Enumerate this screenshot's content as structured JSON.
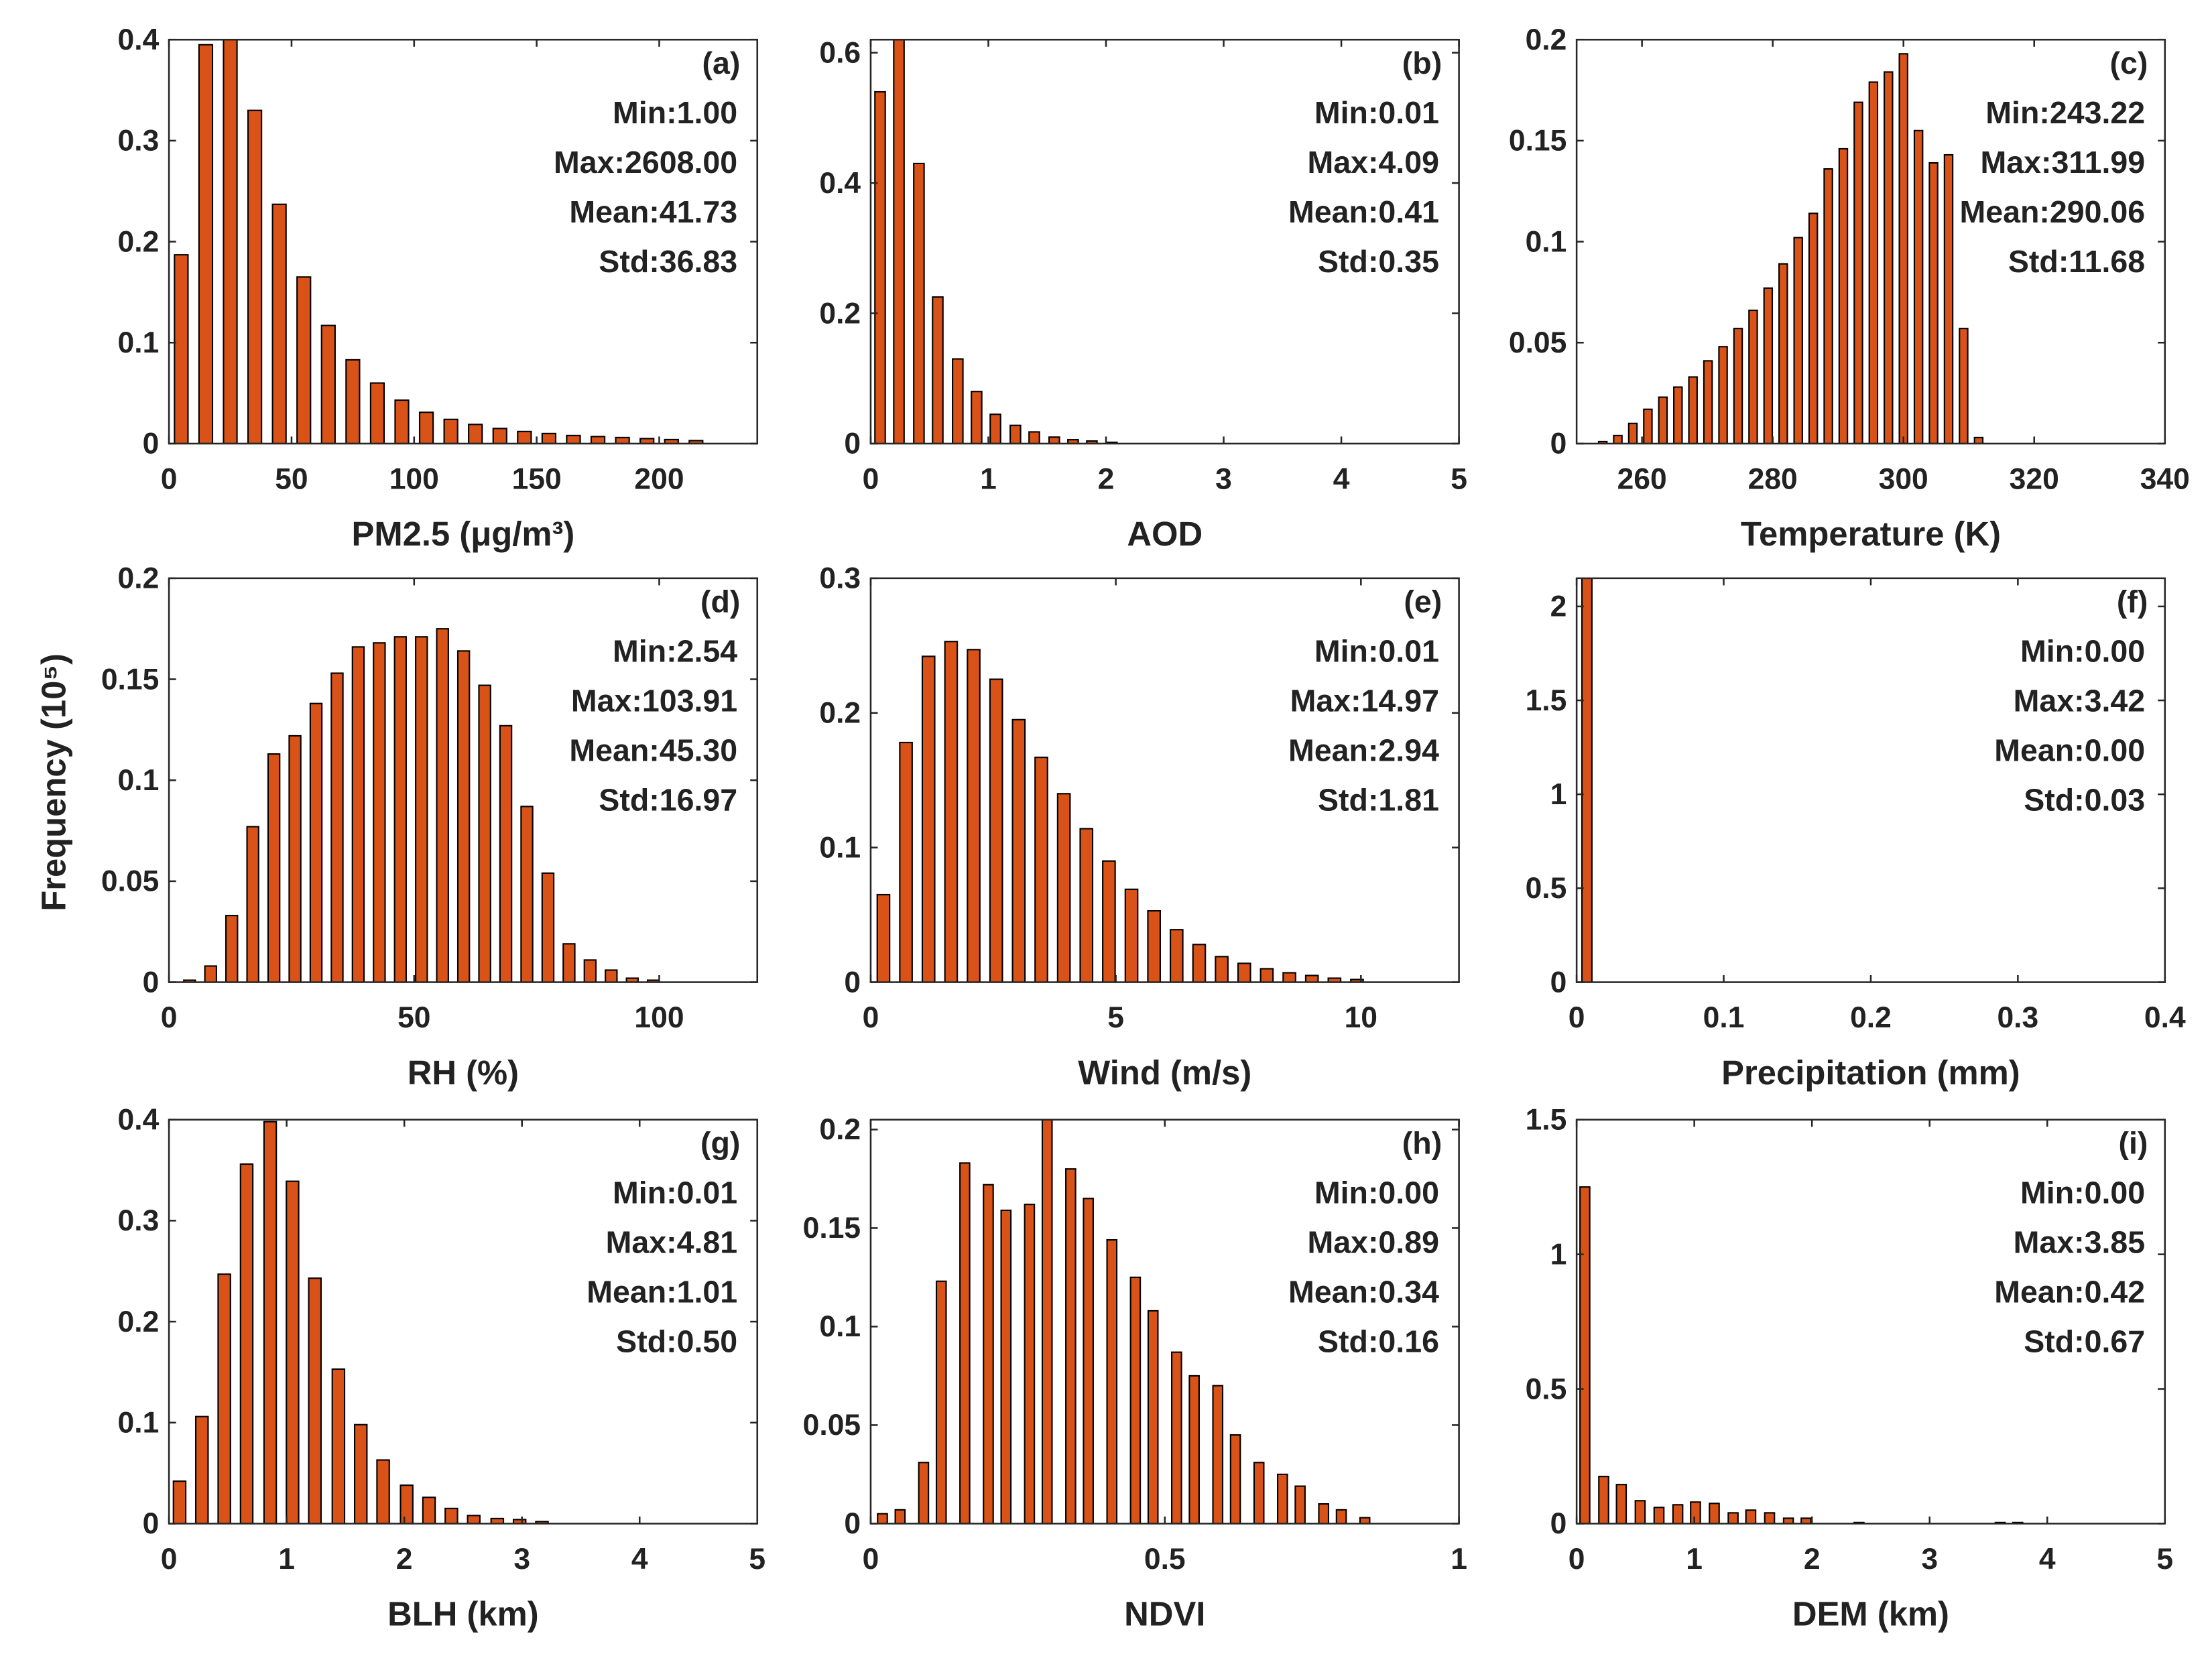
{
  "ylabel": "Frequency (10⁵)",
  "chart_data": [
    {
      "type": "bar",
      "panel_label": "(a)",
      "stats": [
        "Min:1.00",
        "Max:2608.00",
        "Mean:41.73",
        "Std:36.83"
      ],
      "xlabel": "PM2.5 (μg/m³)",
      "color": "#d95319",
      "x": [
        5,
        15,
        25,
        35,
        45,
        55,
        65,
        75,
        85,
        95,
        105,
        115,
        125,
        135,
        145,
        155,
        165,
        175,
        185,
        195,
        205,
        215
      ],
      "values": [
        0.187,
        0.395,
        0.41,
        0.33,
        0.237,
        0.165,
        0.117,
        0.083,
        0.06,
        0.043,
        0.031,
        0.024,
        0.019,
        0.015,
        0.012,
        0.01,
        0.008,
        0.007,
        0.006,
        0.005,
        0.004,
        0.003
      ],
      "xlim": [
        0,
        240
      ],
      "xticks": [
        0,
        50,
        100,
        150,
        200
      ],
      "ylim": [
        0,
        0.4
      ],
      "yticks": [
        0,
        0.1,
        0.2,
        0.3,
        0.4
      ]
    },
    {
      "type": "bar",
      "panel_label": "(b)",
      "stats": [
        "Min:0.01",
        "Max:4.09",
        "Mean:0.41",
        "Std:0.35"
      ],
      "xlabel": "AOD",
      "color": "#d95319",
      "x": [
        0.08,
        0.24,
        0.41,
        0.57,
        0.74,
        0.9,
        1.06,
        1.23,
        1.39,
        1.56,
        1.72,
        1.88,
        2.05
      ],
      "values": [
        0.54,
        0.63,
        0.43,
        0.225,
        0.13,
        0.08,
        0.045,
        0.028,
        0.018,
        0.01,
        0.006,
        0.004,
        0.002
      ],
      "xlim": [
        0,
        5
      ],
      "xticks": [
        0,
        1,
        2,
        3,
        4,
        5
      ],
      "ylim": [
        0,
        0.62
      ],
      "yticks": [
        0,
        0.2,
        0.4,
        0.6
      ]
    },
    {
      "type": "bar",
      "panel_label": "(c)",
      "stats": [
        "Min:243.22",
        "Max:311.99",
        "Mean:290.06",
        "Std:11.68"
      ],
      "xlabel": "Temperature (K)",
      "color": "#d95319",
      "x": [
        254,
        256.3,
        258.6,
        260.9,
        263.2,
        265.5,
        267.8,
        270.1,
        272.4,
        274.7,
        277,
        279.3,
        281.6,
        283.9,
        286.2,
        288.5,
        290.8,
        293.1,
        295.4,
        297.7,
        300,
        302.3,
        304.6,
        306.9,
        309.2,
        311.5
      ],
      "values": [
        0.001,
        0.004,
        0.01,
        0.017,
        0.023,
        0.028,
        0.033,
        0.041,
        0.048,
        0.057,
        0.066,
        0.077,
        0.089,
        0.102,
        0.114,
        0.136,
        0.146,
        0.169,
        0.179,
        0.184,
        0.193,
        0.155,
        0.139,
        0.143,
        0.057,
        0.003
      ],
      "xlim": [
        250,
        340
      ],
      "xticks": [
        260,
        280,
        300,
        320,
        340
      ],
      "ylim": [
        0,
        0.2
      ],
      "yticks": [
        0,
        0.05,
        0.1,
        0.15,
        0.2
      ]
    },
    {
      "type": "bar",
      "panel_label": "(d)",
      "stats": [
        "Min:2.54",
        "Max:103.91",
        "Mean:45.30",
        "Std:16.97"
      ],
      "xlabel": "RH (%)",
      "color": "#d95319",
      "x": [
        4.2,
        8.5,
        12.8,
        17.1,
        21.4,
        25.7,
        30,
        34.3,
        38.6,
        42.9,
        47.2,
        51.5,
        55.8,
        60.1,
        64.4,
        68.7,
        73,
        77.3,
        81.6,
        85.9,
        90.2,
        94.5,
        98.8
      ],
      "values": [
        0.001,
        0.008,
        0.033,
        0.077,
        0.113,
        0.122,
        0.138,
        0.153,
        0.166,
        0.168,
        0.171,
        0.171,
        0.175,
        0.164,
        0.147,
        0.127,
        0.087,
        0.054,
        0.019,
        0.011,
        0.006,
        0.002,
        0.001
      ],
      "xlim": [
        0,
        120
      ],
      "xticks": [
        0,
        50,
        100
      ],
      "ylim": [
        0,
        0.2
      ],
      "yticks": [
        0,
        0.05,
        0.1,
        0.15,
        0.2
      ]
    },
    {
      "type": "bar",
      "panel_label": "(e)",
      "stats": [
        "Min:0.01",
        "Max:14.97",
        "Mean:2.94",
        "Std:1.81"
      ],
      "xlabel": "Wind (m/s)",
      "color": "#d95319",
      "x": [
        0.26,
        0.72,
        1.18,
        1.64,
        2.1,
        2.56,
        3.02,
        3.48,
        3.94,
        4.4,
        4.86,
        5.32,
        5.78,
        6.24,
        6.7,
        7.16,
        7.62,
        8.08,
        8.54,
        9,
        9.46,
        9.92
      ],
      "values": [
        0.065,
        0.178,
        0.242,
        0.253,
        0.247,
        0.225,
        0.195,
        0.167,
        0.14,
        0.114,
        0.09,
        0.069,
        0.053,
        0.039,
        0.028,
        0.019,
        0.014,
        0.01,
        0.007,
        0.005,
        0.003,
        0.002
      ],
      "xlim": [
        0,
        12
      ],
      "xticks": [
        0,
        5,
        10
      ],
      "ylim": [
        0,
        0.3
      ],
      "yticks": [
        0,
        0.1,
        0.2,
        0.3
      ]
    },
    {
      "type": "bar",
      "panel_label": "(f)",
      "stats": [
        "Min:0.00",
        "Max:3.42",
        "Mean:0.00",
        "Std:0.03"
      ],
      "xlabel": "Precipitation (mm)",
      "color": "#d95319",
      "x": [
        0.007
      ],
      "values": [
        2.3
      ],
      "xlim": [
        0,
        0.4
      ],
      "xticks": [
        0,
        0.1,
        0.2,
        0.3,
        0.4
      ],
      "ylim": [
        0,
        2.15
      ],
      "yticks": [
        0,
        0.5,
        1,
        1.5,
        2
      ]
    },
    {
      "type": "bar",
      "panel_label": "(g)",
      "stats": [
        "Min:0.01",
        "Max:4.81",
        "Mean:1.01",
        "Std:0.50"
      ],
      "xlabel": "BLH (km)",
      "color": "#d95319",
      "x": [
        0.09,
        0.28,
        0.47,
        0.66,
        0.86,
        1.05,
        1.24,
        1.44,
        1.63,
        1.82,
        2.02,
        2.21,
        2.4,
        2.59,
        2.79,
        2.98,
        3.17
      ],
      "values": [
        0.042,
        0.106,
        0.247,
        0.356,
        0.398,
        0.339,
        0.243,
        0.153,
        0.098,
        0.063,
        0.038,
        0.026,
        0.015,
        0.008,
        0.005,
        0.004,
        0.002
      ],
      "xlim": [
        0,
        5
      ],
      "xticks": [
        0,
        1,
        2,
        3,
        4,
        5
      ],
      "ylim": [
        0,
        0.4
      ],
      "yticks": [
        0,
        0.1,
        0.2,
        0.3,
        0.4
      ]
    },
    {
      "type": "bar",
      "panel_label": "(h)",
      "stats": [
        "Min:0.00",
        "Max:0.89",
        "Mean:0.34",
        "Std:0.16"
      ],
      "xlabel": "NDVI",
      "color": "#d95319",
      "x": [
        0.02,
        0.05,
        0.09,
        0.12,
        0.16,
        0.2,
        0.23,
        0.27,
        0.3,
        0.34,
        0.37,
        0.41,
        0.45,
        0.48,
        0.52,
        0.55,
        0.59,
        0.62,
        0.66,
        0.7,
        0.73,
        0.77,
        0.8,
        0.84
      ],
      "values": [
        0.005,
        0.007,
        0.031,
        0.123,
        0.183,
        0.172,
        0.159,
        0.162,
        0.21,
        0.18,
        0.165,
        0.144,
        0.125,
        0.108,
        0.087,
        0.075,
        0.07,
        0.045,
        0.031,
        0.025,
        0.019,
        0.01,
        0.007,
        0.003
      ],
      "xlim": [
        0,
        1
      ],
      "xticks": [
        0,
        0.5,
        1
      ],
      "ylim": [
        0,
        0.205
      ],
      "yticks": [
        0,
        0.05,
        0.1,
        0.15,
        0.2
      ]
    },
    {
      "type": "bar",
      "panel_label": "(i)",
      "stats": [
        "Min:0.00",
        "Max:3.85",
        "Mean:0.42",
        "Std:0.67"
      ],
      "xlabel": "DEM (km)",
      "color": "#d95319",
      "x": [
        0.07,
        0.23,
        0.38,
        0.54,
        0.7,
        0.86,
        1.01,
        1.17,
        1.33,
        1.48,
        1.64,
        1.8,
        1.95,
        2.4,
        3.6,
        3.75
      ],
      "values": [
        1.25,
        0.175,
        0.145,
        0.085,
        0.06,
        0.07,
        0.08,
        0.075,
        0.04,
        0.05,
        0.04,
        0.02,
        0.02,
        0.004,
        0.004,
        0.004
      ],
      "xlim": [
        0,
        5
      ],
      "xticks": [
        0,
        1,
        2,
        3,
        4,
        5
      ],
      "ylim": [
        0,
        1.5
      ],
      "yticks": [
        0,
        0.5,
        1,
        1.5
      ]
    }
  ]
}
